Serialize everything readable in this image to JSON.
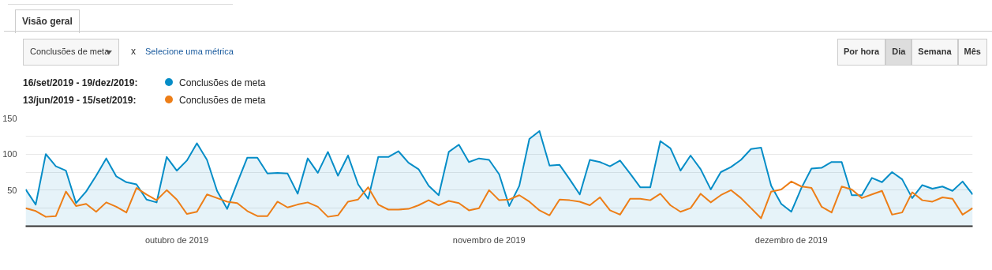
{
  "chart_data": {
    "type": "line",
    "annotations": [
      "Visão geral",
      "Conclusões de meta",
      "x",
      "Selecione uma métrica",
      "Por hora",
      "Dia",
      "Semana",
      "Mês",
      "16/set/2019 - 19/dez/2019:",
      "13/jun/2019 - 15/set/2019:"
    ],
    "x": [
      "2019-09-16",
      "2019-09-17",
      "2019-09-18",
      "2019-09-19",
      "2019-09-20",
      "2019-09-21",
      "2019-09-22",
      "2019-09-23",
      "2019-09-24",
      "2019-09-25",
      "2019-09-26",
      "2019-09-27",
      "2019-09-28",
      "2019-09-29",
      "2019-09-30",
      "2019-10-01",
      "2019-10-02",
      "2019-10-03",
      "2019-10-04",
      "2019-10-05",
      "2019-10-06",
      "2019-10-07",
      "2019-10-08",
      "2019-10-09",
      "2019-10-10",
      "2019-10-11",
      "2019-10-12",
      "2019-10-13",
      "2019-10-14",
      "2019-10-15",
      "2019-10-16",
      "2019-10-17",
      "2019-10-18",
      "2019-10-19",
      "2019-10-20",
      "2019-10-21",
      "2019-10-22",
      "2019-10-23",
      "2019-10-24",
      "2019-10-25",
      "2019-10-26",
      "2019-10-27",
      "2019-10-28",
      "2019-10-29",
      "2019-10-30",
      "2019-10-31",
      "2019-11-01",
      "2019-11-02",
      "2019-11-03",
      "2019-11-04",
      "2019-11-05",
      "2019-11-06",
      "2019-11-07",
      "2019-11-08",
      "2019-11-09",
      "2019-11-10",
      "2019-11-11",
      "2019-11-12",
      "2019-11-13",
      "2019-11-14",
      "2019-11-15",
      "2019-11-16",
      "2019-11-17",
      "2019-11-18",
      "2019-11-19",
      "2019-11-20",
      "2019-11-21",
      "2019-11-22",
      "2019-11-23",
      "2019-11-24",
      "2019-11-25",
      "2019-11-26",
      "2019-11-27",
      "2019-11-28",
      "2019-11-29",
      "2019-11-30",
      "2019-12-01",
      "2019-12-02",
      "2019-12-03",
      "2019-12-04",
      "2019-12-05",
      "2019-12-06",
      "2019-12-07",
      "2019-12-08",
      "2019-12-09",
      "2019-12-10",
      "2019-12-11",
      "2019-12-12",
      "2019-12-13",
      "2019-12-14",
      "2019-12-15",
      "2019-12-16",
      "2019-12-17",
      "2019-12-18",
      "2019-12-19"
    ],
    "series": [
      {
        "name": "Conclusões de meta",
        "type": "area",
        "color": "#058dc7",
        "values": [
          51,
          30,
          100,
          83,
          77,
          32,
          48,
          70,
          94,
          69,
          61,
          58,
          37,
          33,
          96,
          77,
          91,
          115,
          92,
          49,
          24,
          60,
          95,
          95,
          73,
          74,
          73,
          45,
          94,
          74,
          103,
          70,
          98,
          58,
          38,
          96,
          96,
          104,
          88,
          79,
          56,
          43,
          103,
          113,
          89,
          94,
          92,
          72,
          28,
          56,
          121,
          132,
          84,
          85,
          65,
          44,
          92,
          89,
          83,
          91,
          73,
          54,
          54,
          118,
          108,
          77,
          98,
          79,
          51,
          75,
          82,
          92,
          107,
          109,
          56,
          31,
          20,
          53,
          80,
          81,
          89,
          89,
          43,
          43,
          67,
          61,
          75,
          65,
          39,
          57,
          52,
          55,
          49,
          62,
          44
        ]
      },
      {
        "name": "Conclusões de meta",
        "color": "#ed7e17",
        "values": [
          25,
          21,
          13,
          14,
          48,
          28,
          31,
          20,
          33,
          27,
          19,
          53,
          44,
          36,
          50,
          37,
          17,
          20,
          44,
          39,
          34,
          32,
          21,
          14,
          14,
          34,
          26,
          30,
          33,
          27,
          13,
          15,
          34,
          37,
          54,
          30,
          23,
          23,
          24,
          29,
          36,
          29,
          35,
          32,
          22,
          25,
          50,
          36,
          37,
          43,
          34,
          22,
          15,
          37,
          36,
          34,
          29,
          40,
          22,
          16,
          38,
          38,
          36,
          45,
          29,
          20,
          25,
          45,
          33,
          43,
          50,
          39,
          25,
          11,
          48,
          51,
          62,
          55,
          53,
          27,
          19,
          55,
          51,
          39,
          44,
          49,
          16,
          19,
          47,
          36,
          34,
          40,
          38,
          16,
          25
        ]
      }
    ],
    "xlim": [
      "2019-09-16",
      "2019-12-19"
    ],
    "xticks": [
      {
        "value": "2019-10-01",
        "label": "outubro de 2019"
      },
      {
        "value": "2019-11-01",
        "label": "novembro de 2019"
      },
      {
        "value": "2019-12-01",
        "label": "dezembro de 2019"
      }
    ],
    "ylim": [
      0,
      150
    ],
    "yticks": [
      {
        "value": 25,
        "label": null
      },
      50,
      {
        "value": 75,
        "label": null
      },
      100,
      {
        "value": 125,
        "label": null
      },
      150
    ],
    "grid": "y",
    "legend": "top left",
    "marker": "none",
    "line_style": "solid"
  }
}
